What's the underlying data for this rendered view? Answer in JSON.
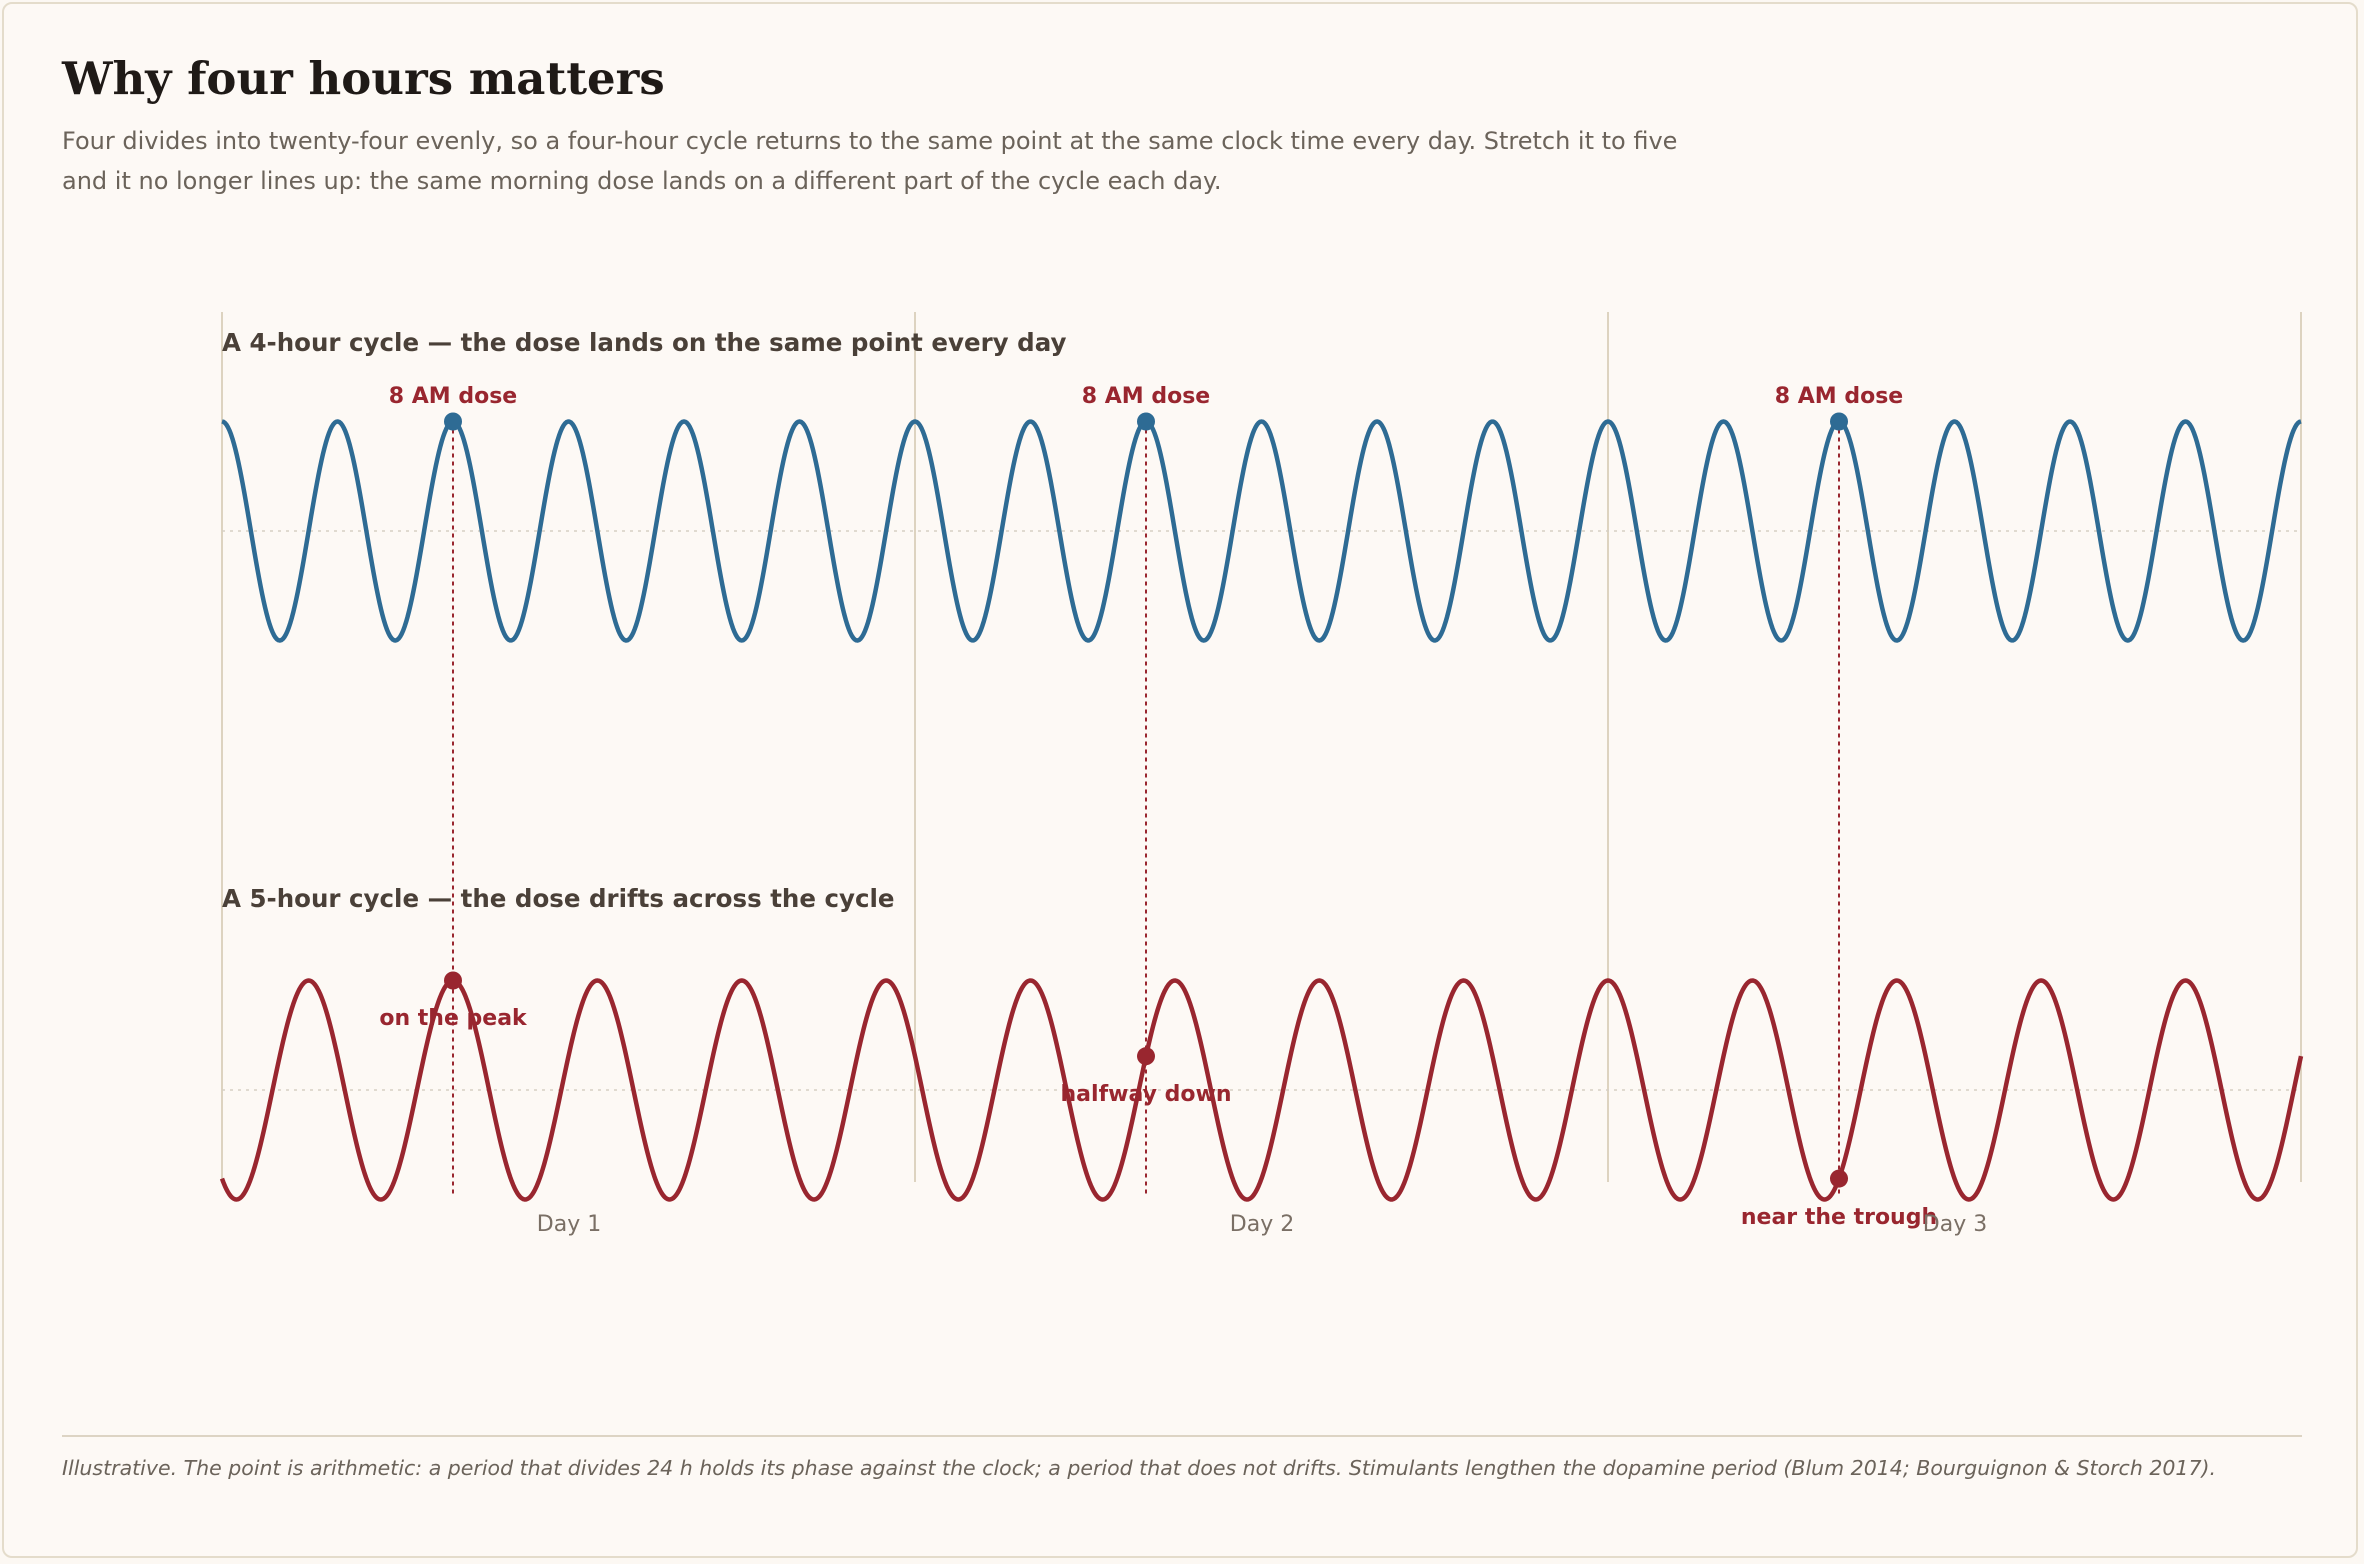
{
  "title": "Why four hours matters",
  "subtitle": "Four divides into twenty-four evenly, so a four-hour cycle returns to the same point at the same clock time every day. Stretch it to five and it no longer lines up: the same morning dose lands on a different part of the cycle each day.",
  "footnote": "Illustrative. The point is arithmetic: a period that divides 24 h holds its phase against the clock; a period that does not drifts. Stimulants lengthen the dopamine period (Blum 2014; Bourguignon & Storch 2017).",
  "colors": {
    "four_hour": "#2e6b94",
    "five_hour": "#99262f",
    "day_divider": "#ddd3c0",
    "midline": "#d6cfc4"
  },
  "chart_data": {
    "type": "line",
    "x_unit": "hours",
    "x_range": [
      0,
      72
    ],
    "days": [
      "Day 1",
      "Day 2",
      "Day 3"
    ],
    "dose_hours": [
      8,
      32,
      56
    ],
    "series": [
      {
        "key": "four_hour",
        "panel_title": "A 4-hour cycle — the dose lands on the same point every day",
        "period_hours": 4,
        "peak_at_hour": 0,
        "dose_labels": [
          "8 AM dose",
          "8 AM dose",
          "8 AM dose"
        ],
        "color": "#2e6b94"
      },
      {
        "key": "five_hour",
        "panel_title": "A 5-hour cycle — the dose drifts across the cycle",
        "period_hours": 5,
        "peak_at_hour": 8,
        "dose_labels": [
          "on the peak",
          "halfway down",
          "near the trough"
        ],
        "color": "#99262f"
      }
    ]
  }
}
